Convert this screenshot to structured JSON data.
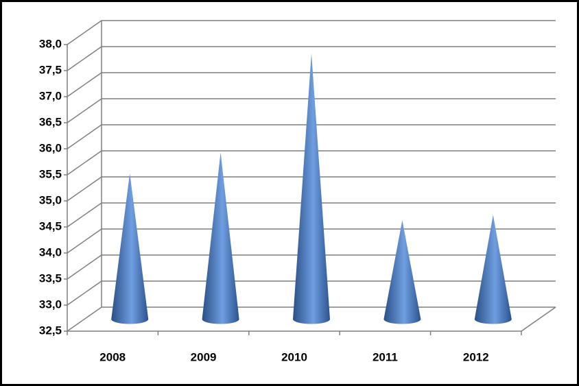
{
  "chart_data": {
    "type": "cone",
    "categories": [
      "2008",
      "2009",
      "2010",
      "2011",
      "2012"
    ],
    "values": [
      35.3,
      35.7,
      37.6,
      34.4,
      34.5
    ],
    "color": "#4f81bd",
    "ylim": [
      32.5,
      38.0
    ],
    "yticks": [
      {
        "value": 32.5,
        "label": "32,5"
      },
      {
        "value": 33.0,
        "label": "33,0"
      },
      {
        "value": 33.5,
        "label": "33,5"
      },
      {
        "value": 34.0,
        "label": "34,0"
      },
      {
        "value": 34.5,
        "label": "34,5"
      },
      {
        "value": 35.0,
        "label": "35,0"
      },
      {
        "value": 35.5,
        "label": "35,5"
      },
      {
        "value": 36.0,
        "label": "36,0"
      },
      {
        "value": 36.5,
        "label": "36,5"
      },
      {
        "value": 37.0,
        "label": "37,0"
      },
      {
        "value": 37.5,
        "label": "37,5"
      },
      {
        "value": 38.0,
        "label": "38,0"
      }
    ],
    "grid": true
  }
}
